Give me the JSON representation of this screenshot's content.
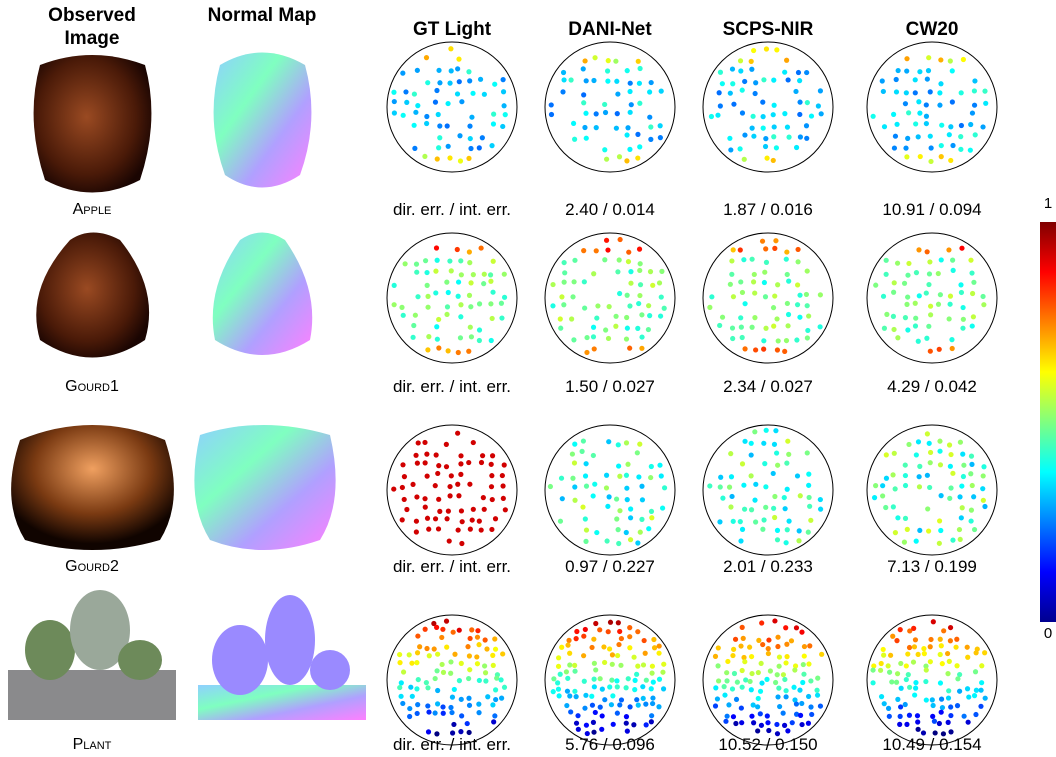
{
  "headers": [
    "Observed Image",
    "Normal Map",
    "GT Light",
    "DANI-Net",
    "SCPS-NIR",
    "CW20"
  ],
  "rows": [
    {
      "name": "Apple",
      "metrics": [
        "dir. err. / int. err.",
        "2.40 / 0.014",
        "1.87 / 0.016",
        "10.91 / 0.094"
      ]
    },
    {
      "name": "Gourd1",
      "metrics": [
        "dir. err. / int. err.",
        "1.50 / 0.027",
        "2.34 / 0.027",
        "4.29 / 0.042"
      ]
    },
    {
      "name": "Gourd2",
      "metrics": [
        "dir. err. / int. err.",
        "0.97 / 0.227",
        "2.01 / 0.233",
        "7.13 / 0.199"
      ]
    },
    {
      "name": "Plant",
      "metrics": [
        "dir. err. / int. err.",
        "5.76 / 0.096",
        "10.52 / 0.150",
        "10.49 / 0.154"
      ]
    }
  ],
  "colorbar": {
    "max": "1",
    "min": "0"
  }
}
